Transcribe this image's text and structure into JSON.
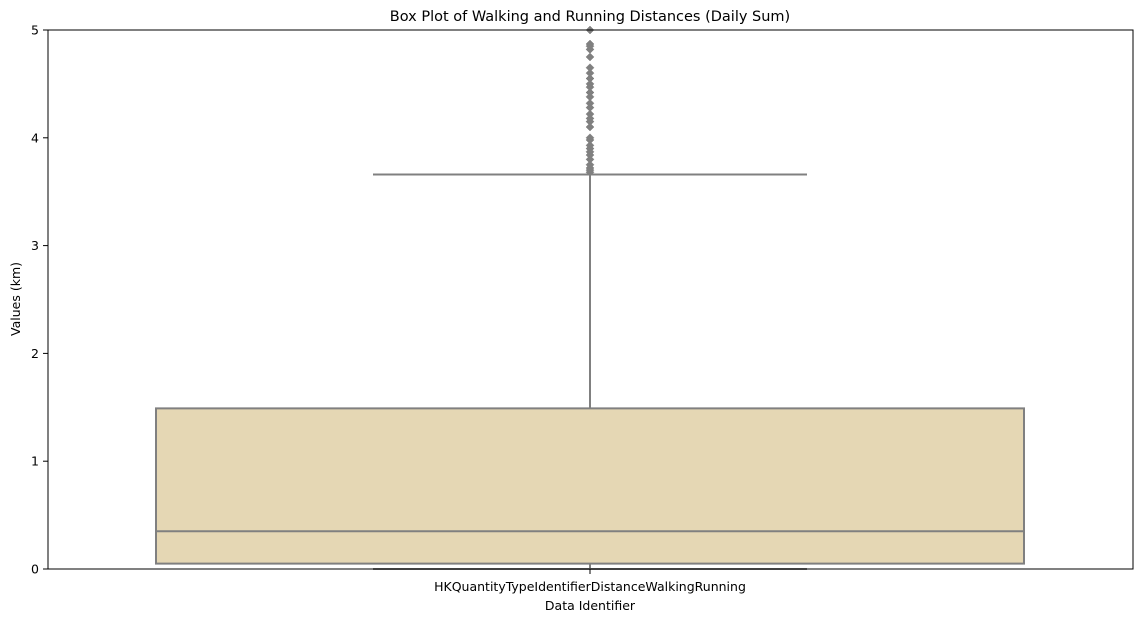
{
  "chart_data": {
    "type": "box",
    "title": "Box Plot of Walking and Running Distances (Daily Sum)",
    "xlabel": "Data Identifier",
    "ylabel": "Values (km)",
    "ylim": [
      0,
      5
    ],
    "yticks": [
      0,
      1,
      2,
      3,
      4,
      5
    ],
    "categories": [
      "HKQuantityTypeIdentifierDistanceWalkingRunning"
    ],
    "grid": false,
    "legend": "none",
    "box": {
      "q1": 0.05,
      "median": 0.35,
      "q3": 1.49,
      "whisker_low": 0.0,
      "whisker_high": 3.66,
      "outliers": [
        3.68,
        3.7,
        3.72,
        3.75,
        3.8,
        3.84,
        3.87,
        3.9,
        3.93,
        3.98,
        4.0,
        4.1,
        4.15,
        4.18,
        4.22,
        4.28,
        4.32,
        4.38,
        4.42,
        4.47,
        4.5,
        4.55,
        4.6,
        4.65,
        4.75,
        4.82,
        4.85,
        4.87,
        5.0
      ]
    },
    "colors": {
      "box_fill": "#e5d7b4",
      "line": "#808080"
    }
  }
}
